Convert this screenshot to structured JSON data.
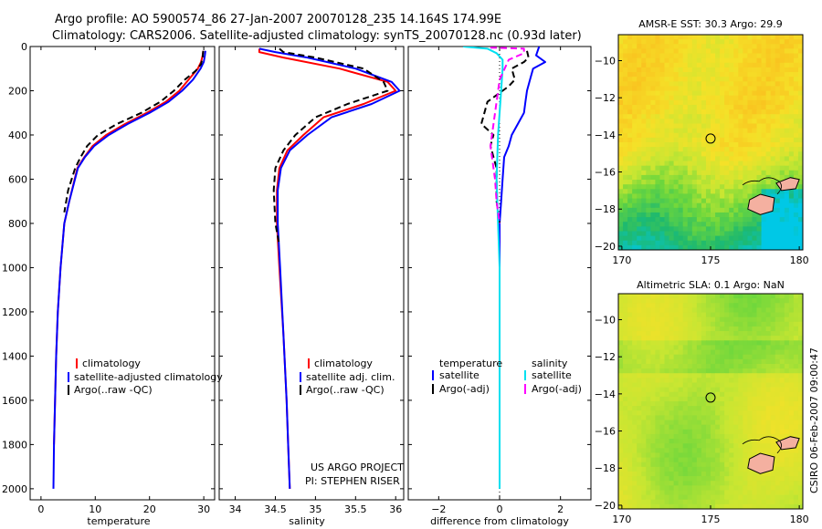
{
  "title": {
    "line1": "Argo profile: AO 5900574_86 27-Jan-2007 20070128_235 14.164S 174.99E",
    "line2": "Climatology: CARS2006. Satellite-adjusted climatology: synTS_20070128.nc (0.93d later)"
  },
  "side_label": "CSIRO 06-Feb-2007 09:00:47",
  "credit": {
    "line1": "US ARGO PROJECT",
    "line2": "PI: STEPHEN RISER"
  },
  "colors": {
    "climatology": "#ff0000",
    "satellite": "#0000ff",
    "argo": "#000000",
    "salinity_satellite": "#00e0f0",
    "salinity_argo": "#ff00ff"
  },
  "chart_data": [
    {
      "type": "line",
      "xlabel": "temperature",
      "ylabel": "",
      "xlim": [
        -2,
        32
      ],
      "ylim": [
        2050,
        0
      ],
      "xticks": [
        0,
        10,
        20,
        30
      ],
      "yticks": [
        0,
        200,
        400,
        600,
        800,
        1000,
        1200,
        1400,
        1600,
        1800,
        2000
      ],
      "legend": {
        "location": "lower-left",
        "entries": [
          "climatology",
          "satellite-adjusted climatology",
          "Argo(..raw -QC)"
        ]
      },
      "series": [
        {
          "name": "climatology",
          "color": "#ff0000",
          "dash": "solid",
          "x": [
            29.9,
            29.8,
            29.5,
            28.9,
            27.2,
            25.5,
            23.0,
            19.5,
            15.5,
            12.0,
            9.5,
            8.0,
            6.7,
            5.2,
            4.3,
            3.6,
            3.1,
            2.8,
            2.6,
            2.4
          ],
          "y": [
            20,
            40,
            70,
            100,
            150,
            200,
            250,
            300,
            350,
            400,
            450,
            500,
            550,
            700,
            800,
            1000,
            1200,
            1400,
            1600,
            1800
          ]
        },
        {
          "name": "satellite-adjusted climatology",
          "color": "#0000ff",
          "dash": "solid",
          "x": [
            30.3,
            30.2,
            30.0,
            29.4,
            28.0,
            26.0,
            23.5,
            20.0,
            16.0,
            12.5,
            9.8,
            8.1,
            6.8,
            5.2,
            4.3,
            3.6,
            3.1,
            2.8,
            2.6,
            2.4,
            2.3
          ],
          "y": [
            20,
            40,
            70,
            100,
            150,
            200,
            250,
            300,
            350,
            400,
            450,
            500,
            550,
            700,
            800,
            1000,
            1200,
            1400,
            1600,
            1800,
            2000
          ]
        },
        {
          "name": "Argo(..raw -QC)",
          "color": "#000000",
          "dash": "dashed",
          "x": [
            29.9,
            29.8,
            29.5,
            28.5,
            26.5,
            24.5,
            22.0,
            18.5,
            14.0,
            10.5,
            8.5,
            7.3,
            6.3,
            5.0,
            4.3
          ],
          "y": [
            20,
            50,
            80,
            110,
            150,
            200,
            250,
            300,
            350,
            400,
            450,
            500,
            550,
            650,
            750
          ]
        }
      ]
    },
    {
      "type": "line",
      "xlabel": "salinity",
      "ylabel": "",
      "xlim": [
        33.8,
        36.1
      ],
      "ylim": [
        2050,
        0
      ],
      "xticks": [
        34,
        34.5,
        35,
        35.5,
        36
      ],
      "xticklabels": [
        "34",
        "34.5",
        "35",
        "35.5",
        "36"
      ],
      "legend": {
        "location": "lower-left",
        "entries": [
          "climatology",
          "satellite adj. clim.",
          "Argo(..raw -QC)"
        ]
      },
      "series": [
        {
          "name": "climatology",
          "color": "#ff0000",
          "dash": "solid",
          "x": [
            34.3,
            34.3,
            34.6,
            35.3,
            35.9,
            36.0,
            35.6,
            35.1,
            34.85,
            34.65,
            34.55,
            34.52,
            34.52,
            34.55,
            34.6,
            34.64,
            34.66,
            34.68
          ],
          "y": [
            10,
            25,
            50,
            100,
            160,
            200,
            260,
            320,
            400,
            470,
            550,
            650,
            800,
            1000,
            1300,
            1600,
            1800,
            2000
          ]
        },
        {
          "name": "satellite adj. clim.",
          "color": "#0000ff",
          "dash": "solid",
          "x": [
            34.3,
            34.5,
            34.9,
            35.5,
            35.95,
            36.05,
            35.7,
            35.2,
            34.9,
            34.68,
            34.57,
            34.53,
            34.53,
            34.56,
            34.6,
            34.64,
            34.66,
            34.68
          ],
          "y": [
            10,
            25,
            50,
            100,
            160,
            200,
            260,
            320,
            400,
            470,
            550,
            650,
            800,
            1000,
            1300,
            1600,
            1800,
            2000
          ]
        },
        {
          "name": "Argo(..raw -QC)",
          "color": "#000000",
          "dash": "dashed",
          "x": [
            34.55,
            34.6,
            35.0,
            35.6,
            35.85,
            35.9,
            35.4,
            35.0,
            34.75,
            34.6,
            34.5,
            34.48,
            34.5,
            34.55
          ],
          "y": [
            10,
            25,
            50,
            100,
            160,
            200,
            260,
            320,
            400,
            470,
            550,
            650,
            800,
            900
          ]
        }
      ]
    },
    {
      "type": "line",
      "xlabel": "difference from climatology",
      "ylabel": "",
      "xlim": [
        -3,
        3
      ],
      "ylim": [
        2050,
        0
      ],
      "xticks": [
        -2,
        0,
        2
      ],
      "legend": {
        "location": "top-of-lower-half",
        "entries": [
          "temperature",
          "satellite",
          "Argo(-adj)",
          "salinity",
          "satellite",
          "Argo(-adj)"
        ]
      },
      "series": [
        {
          "name": "temperature satellite",
          "color": "#0000ff",
          "dash": "solid",
          "x": [
            1.3,
            1.2,
            1.5,
            1.1,
            1.0,
            0.9,
            0.85,
            0.8,
            0.6,
            0.4,
            0.3,
            0.15,
            0.1,
            0.05,
            0.0,
            0.0
          ],
          "y": [
            0,
            40,
            70,
            100,
            150,
            200,
            250,
            300,
            350,
            400,
            450,
            500,
            600,
            700,
            800,
            1000
          ]
        },
        {
          "name": "temperature Argo(-adj)",
          "color": "#000000",
          "dash": "dashed",
          "x": [
            0.9,
            0.95,
            0.8,
            0.4,
            0.5,
            0.3,
            0.1,
            -0.4,
            -0.6,
            -0.2,
            -0.3,
            -0.1,
            -0.1,
            0.0
          ],
          "y": [
            20,
            50,
            70,
            100,
            150,
            180,
            200,
            250,
            350,
            400,
            450,
            550,
            700,
            800
          ]
        },
        {
          "name": "salinity satellite",
          "color": "#00e0f0",
          "dash": "solid",
          "x": [
            -1.2,
            -0.4,
            -0.1,
            0.1,
            0.1,
            0.05,
            -0.05,
            -0.1,
            -0.05,
            0.0,
            0.0,
            0.0
          ],
          "y": [
            0,
            10,
            30,
            60,
            100,
            200,
            400,
            600,
            800,
            1000,
            1500,
            2000
          ]
        },
        {
          "name": "salinity Argo(-adj)",
          "color": "#ff00ff",
          "dash": "dashed",
          "x": [
            -0.3,
            0.8,
            0.8,
            0.3,
            0.0,
            -0.1,
            -0.3,
            -0.15,
            -0.1,
            0.0
          ],
          "y": [
            5,
            10,
            30,
            60,
            150,
            250,
            450,
            600,
            700,
            800
          ]
        }
      ]
    },
    {
      "type": "heatmap",
      "title": "AMSR-E SST: 30.3 Argo: 29.9",
      "xlim": [
        169.8,
        180.2
      ],
      "ylim": [
        -20.2,
        -8.6
      ],
      "xticks": [
        170,
        175,
        180
      ],
      "yticks": [
        -10,
        -12,
        -14,
        -16,
        -18,
        -20
      ],
      "marker": {
        "x": 175,
        "y": -14.2
      }
    },
    {
      "type": "heatmap",
      "title": "Altimetric SLA: 0.1 Argo: NaN",
      "xlim": [
        169.8,
        180.2
      ],
      "ylim": [
        -20.2,
        -8.6
      ],
      "xticks": [
        170,
        175,
        180
      ],
      "yticks": [
        -10,
        -12,
        -14,
        -16,
        -18,
        -20
      ],
      "marker": {
        "x": 175,
        "y": -14.2
      }
    }
  ]
}
